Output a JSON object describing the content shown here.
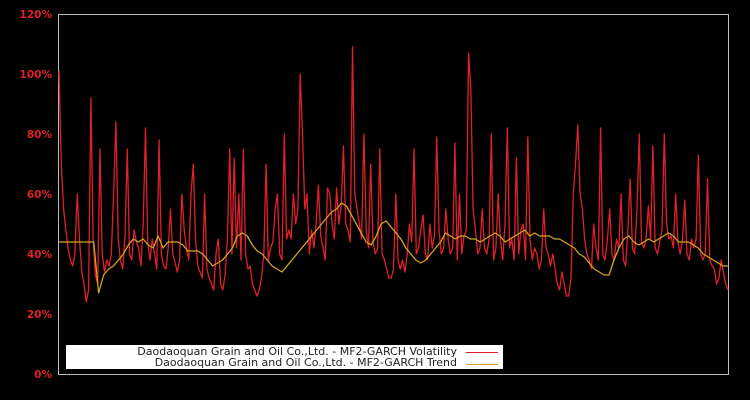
{
  "chart_data": {
    "type": "line",
    "title": "",
    "xlabel": "",
    "ylabel": "",
    "ylim": [
      0,
      120
    ],
    "yticks": [
      "0%",
      "20%",
      "40%",
      "60%",
      "80%",
      "100%",
      "120%"
    ],
    "grid": false,
    "legend_position": "lower-left inside",
    "background": "#000000",
    "series": [
      {
        "name": "Daodaoquan Grain and Oil Co.,Ltd. - MF2-GARCH Volatility",
        "color": "#e0202a",
        "note": "daily volatility, ranges ~22% to ~109%, spikes at ~x-positions of plot; values approximate, sampled evenly across the plot width",
        "values": [
          101,
          70,
          55,
          48,
          42,
          38,
          36,
          40,
          60,
          45,
          34,
          30,
          24,
          28,
          92,
          45,
          33,
          30,
          75,
          40,
          34,
          38,
          36,
          40,
          60,
          84,
          45,
          38,
          35,
          46,
          75,
          40,
          38,
          48,
          44,
          42,
          36,
          50,
          82,
          44,
          38,
          45,
          40,
          35,
          78,
          40,
          36,
          35,
          42,
          55,
          40,
          37,
          34,
          38,
          60,
          48,
          42,
          38,
          60,
          70,
          45,
          36,
          34,
          32,
          60,
          35,
          32,
          30,
          28,
          40,
          45,
          30,
          28,
          33,
          45,
          75,
          40,
          72,
          42,
          60,
          38,
          75,
          40,
          35,
          36,
          30,
          28,
          26,
          28,
          32,
          40,
          70,
          38,
          42,
          44,
          55,
          60,
          40,
          38,
          80,
          45,
          48,
          45,
          60,
          50,
          55,
          100,
          80,
          55,
          60,
          40,
          48,
          42,
          50,
          63,
          46,
          42,
          38,
          62,
          60,
          50,
          45,
          62,
          50,
          56,
          76,
          50,
          48,
          44,
          109,
          60,
          55,
          50,
          45,
          80,
          48,
          42,
          70,
          44,
          40,
          42,
          75,
          40,
          38,
          35,
          32,
          32,
          35,
          60,
          38,
          35,
          38,
          34,
          40,
          50,
          44,
          75,
          40,
          42,
          48,
          53,
          40,
          38,
          50,
          42,
          46,
          79,
          48,
          40,
          42,
          55,
          45,
          40,
          42,
          77,
          38,
          60,
          40,
          46,
          48,
          107,
          94,
          55,
          48,
          40,
          42,
          55,
          42,
          40,
          45,
          80,
          38,
          42,
          60,
          45,
          38,
          50,
          82,
          42,
          45,
          38,
          72,
          40,
          48,
          50,
          38,
          79,
          45,
          38,
          42,
          40,
          35,
          38,
          55,
          42,
          40,
          36,
          40,
          35,
          30,
          28,
          34,
          30,
          26,
          26,
          32,
          60,
          70,
          83,
          60,
          55,
          45,
          40,
          38,
          35,
          50,
          42,
          38,
          82,
          40,
          38,
          45,
          55,
          40,
          38,
          45,
          42,
          60,
          38,
          36,
          48,
          65,
          42,
          40,
          55,
          80,
          44,
          42,
          45,
          56,
          45,
          76,
          42,
          40,
          44,
          48,
          80,
          50,
          45,
          46,
          42,
          60,
          44,
          40,
          45,
          58,
          40,
          38,
          45,
          42,
          45,
          73,
          40,
          38,
          40,
          65,
          38,
          36,
          35,
          30,
          32,
          38,
          34,
          30,
          28
        ]
      },
      {
        "name": "Daodaoquan Grain and Oil Co.,Ltd. - MF2-GARCH Trend",
        "color": "#d4a520",
        "note": "smooth trend, ranges ~27% to ~57%; values approximate",
        "values": [
          44,
          44,
          44,
          44,
          44,
          44,
          44,
          44,
          27,
          33,
          35,
          36,
          38,
          40,
          43,
          45,
          44,
          45,
          43,
          42,
          46,
          42,
          44,
          44,
          44,
          43,
          41,
          41,
          41,
          40,
          38,
          36,
          37,
          38,
          40,
          42,
          46,
          47,
          46,
          43,
          41,
          40,
          38,
          36,
          35,
          34,
          36,
          38,
          40,
          42,
          44,
          46,
          48,
          50,
          52,
          54,
          55,
          57,
          56,
          53,
          50,
          47,
          44,
          43,
          46,
          50,
          51,
          49,
          47,
          45,
          42,
          40,
          38,
          37,
          38,
          40,
          42,
          44,
          47,
          46,
          45,
          46,
          46,
          45,
          45,
          44,
          45,
          46,
          47,
          46,
          44,
          45,
          46,
          47,
          48,
          46,
          47,
          46,
          46,
          46,
          45,
          45,
          44,
          43,
          42,
          40,
          39,
          37,
          35,
          34,
          33,
          33,
          38,
          42,
          45,
          46,
          44,
          43,
          44,
          45,
          44,
          45,
          46,
          47,
          46,
          44,
          44,
          44,
          43,
          42,
          40,
          39,
          38,
          37,
          36,
          36
        ]
      }
    ]
  },
  "axes": {
    "y_ticks": [
      "120%",
      "100%",
      "80%",
      "60%",
      "40%",
      "20%",
      "0%"
    ]
  },
  "legend": {
    "items": [
      {
        "label": "Daodaoquan Grain and Oil Co.,Ltd. - MF2-GARCH Volatility",
        "color": "#e0202a"
      },
      {
        "label": "Daodaoquan Grain and Oil Co.,Ltd. - MF2-GARCH Trend",
        "color": "#d4a520"
      }
    ]
  }
}
